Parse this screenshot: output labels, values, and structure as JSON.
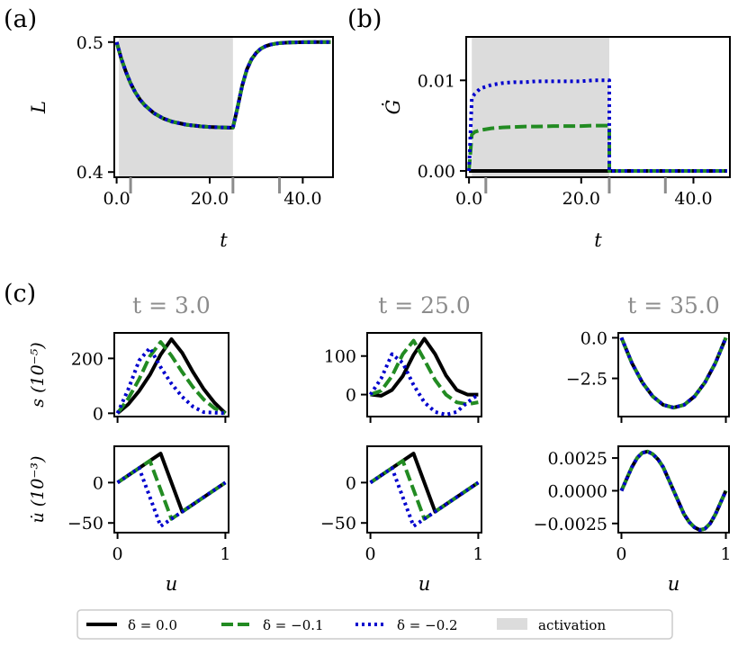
{
  "colors": {
    "black": "#000000",
    "green": "#228b22",
    "blue": "#0000cd",
    "activation": "#dcdcdc",
    "tick_grey": "#8c8c8c",
    "title_grey": "#8c8c8c"
  },
  "chart_data": [
    {
      "id": "a",
      "panel_label": "(a)",
      "type": "line",
      "xlabel": "t",
      "ylabel": "L",
      "xlim": [
        -0.5,
        46.5
      ],
      "ylim": [
        0.396,
        0.504
      ],
      "xticks": [
        0,
        20,
        40
      ],
      "xtick_labels": [
        "0.0",
        "20.0",
        "40.0"
      ],
      "minor_xticks": [
        3,
        25,
        35
      ],
      "yticks": [
        0.4,
        0.5
      ],
      "ytick_labels": [
        "0.4",
        "0.5"
      ],
      "activation": [
        0.5,
        25
      ],
      "series": [
        {
          "name": "δ = 0.0",
          "color": "#000000",
          "dash": "solid",
          "x": [
            0,
            1,
            2,
            3,
            4,
            5,
            6,
            8,
            10,
            12,
            15,
            18,
            20,
            22,
            24,
            25,
            26,
            27,
            28,
            29,
            30,
            31,
            32,
            33,
            34,
            35,
            37,
            40,
            43,
            46
          ],
          "y": [
            0.5,
            0.4873,
            0.4771,
            0.4683,
            0.4614,
            0.4559,
            0.4516,
            0.4453,
            0.4413,
            0.4387,
            0.4364,
            0.4352,
            0.4347,
            0.4344,
            0.4342,
            0.4342,
            0.4499,
            0.4667,
            0.479,
            0.4868,
            0.4917,
            0.4949,
            0.4968,
            0.498,
            0.4987,
            0.4992,
            0.4997,
            0.4999,
            0.5,
            0.5
          ]
        },
        {
          "name": "δ = −0.1",
          "color": "#228b22",
          "dash": "dashed",
          "x": [
            0,
            1,
            2,
            3,
            4,
            5,
            6,
            8,
            10,
            12,
            15,
            18,
            20,
            22,
            24,
            25,
            26,
            27,
            28,
            29,
            30,
            31,
            32,
            33,
            34,
            35,
            37,
            40,
            43,
            46
          ],
          "y": [
            0.5,
            0.4873,
            0.4771,
            0.4683,
            0.4614,
            0.4559,
            0.4516,
            0.4453,
            0.4413,
            0.4387,
            0.4364,
            0.4352,
            0.4347,
            0.4344,
            0.4342,
            0.4342,
            0.4499,
            0.4667,
            0.479,
            0.4868,
            0.4917,
            0.4949,
            0.4968,
            0.498,
            0.4987,
            0.4992,
            0.4997,
            0.4999,
            0.5,
            0.5
          ]
        },
        {
          "name": "δ = −0.2",
          "color": "#0000cd",
          "dash": "dotted",
          "x": [
            0,
            1,
            2,
            3,
            4,
            5,
            6,
            8,
            10,
            12,
            15,
            18,
            20,
            22,
            24,
            25,
            26,
            27,
            28,
            29,
            30,
            31,
            32,
            33,
            34,
            35,
            37,
            40,
            43,
            46
          ],
          "y": [
            0.5,
            0.4873,
            0.4771,
            0.4683,
            0.4614,
            0.4559,
            0.4516,
            0.4453,
            0.4413,
            0.4387,
            0.4364,
            0.4352,
            0.4347,
            0.4344,
            0.4342,
            0.4342,
            0.4499,
            0.4667,
            0.479,
            0.4868,
            0.4917,
            0.4949,
            0.4968,
            0.498,
            0.4987,
            0.4992,
            0.4997,
            0.4999,
            0.5,
            0.5
          ]
        }
      ]
    },
    {
      "id": "b",
      "panel_label": "(b)",
      "type": "line",
      "xlabel": "t",
      "ylabel": "Ġ",
      "xlim": [
        -0.5,
        46.5
      ],
      "ylim": [
        -0.0007,
        0.0148
      ],
      "xticks": [
        0,
        20,
        40
      ],
      "xtick_labels": [
        "0.0",
        "20.0",
        "40.0"
      ],
      "minor_xticks": [
        3,
        25,
        35
      ],
      "yticks": [
        0.0,
        0.01
      ],
      "ytick_labels": [
        "0.00",
        "0.01"
      ],
      "activation": [
        0.5,
        25
      ],
      "series": [
        {
          "name": "δ = 0.0",
          "color": "#000000",
          "dash": "solid",
          "x": [
            0,
            25,
            25.01,
            46
          ],
          "y": [
            0,
            0,
            0,
            0
          ]
        },
        {
          "name": "δ = −0.1",
          "color": "#228b22",
          "dash": "dashed",
          "x": [
            0,
            0.5,
            1,
            2,
            4,
            6,
            8,
            10,
            12,
            15,
            18,
            20,
            22,
            24,
            25,
            25.01,
            46
          ],
          "y": [
            0,
            0.004,
            0.0043,
            0.0045,
            0.0047,
            0.0048,
            0.00485,
            0.0049,
            0.0049,
            0.00495,
            0.00495,
            0.00495,
            0.005,
            0.005,
            0.005,
            0,
            0
          ]
        },
        {
          "name": "δ = −0.2",
          "color": "#0000cd",
          "dash": "dotted",
          "x": [
            0,
            0.5,
            1,
            2,
            4,
            6,
            8,
            10,
            12,
            15,
            18,
            20,
            22,
            24,
            25,
            25.01,
            46
          ],
          "y": [
            0,
            0.008,
            0.0085,
            0.0091,
            0.0095,
            0.0097,
            0.0098,
            0.0098,
            0.0099,
            0.0099,
            0.0099,
            0.0099,
            0.01,
            0.01,
            0.01,
            0,
            0
          ]
        }
      ]
    },
    {
      "id": "c1",
      "panel_label": "(c)",
      "title": "t = 3.0",
      "type": "line",
      "ylabel": "s (10⁻⁵)",
      "xlim": [
        -0.03,
        1.03
      ],
      "ylim": [
        -12,
        293
      ],
      "xticks": [
        0,
        1
      ],
      "xtick_labels": [
        "",
        ""
      ],
      "yticks": [
        0,
        200
      ],
      "ytick_labels": [
        "0",
        "200"
      ],
      "series": [
        {
          "name": "δ = 0.0",
          "color": "#000000",
          "dash": "solid",
          "x": [
            0,
            0.1,
            0.2,
            0.3,
            0.4,
            0.5,
            0.6,
            0.7,
            0.8,
            0.9,
            1.0
          ],
          "y": [
            0,
            33,
            81,
            140,
            214,
            270,
            220,
            150,
            88,
            38,
            0
          ]
        },
        {
          "name": "δ = −0.1",
          "color": "#228b22",
          "dash": "dashed",
          "x": [
            0,
            0.1,
            0.2,
            0.3,
            0.4,
            0.5,
            0.6,
            0.7,
            0.8,
            0.9,
            1.0
          ],
          "y": [
            0,
            54,
            124,
            208,
            260,
            210,
            150,
            95,
            50,
            18,
            0
          ]
        },
        {
          "name": "δ = −0.2",
          "color": "#0000cd",
          "dash": "dotted",
          "x": [
            0,
            0.1,
            0.2,
            0.3,
            0.4,
            0.5,
            0.6,
            0.7,
            0.8,
            0.9,
            1.0
          ],
          "y": [
            0,
            88,
            192,
            238,
            168,
            108,
            60,
            24,
            4,
            2,
            0
          ]
        }
      ]
    },
    {
      "id": "c2",
      "title": "t = 25.0",
      "type": "line",
      "xlim": [
        -0.03,
        1.03
      ],
      "ylim": [
        -57,
        160
      ],
      "xticks": [
        0,
        1
      ],
      "xtick_labels": [
        "",
        ""
      ],
      "yticks": [
        0,
        100
      ],
      "ytick_labels": [
        "0",
        "100"
      ],
      "series": [
        {
          "name": "δ = 0.0",
          "color": "#000000",
          "dash": "solid",
          "x": [
            0,
            0.1,
            0.2,
            0.3,
            0.4,
            0.5,
            0.6,
            0.7,
            0.8,
            0.9,
            1.0
          ],
          "y": [
            0,
            -3,
            12,
            48,
            103,
            145,
            105,
            50,
            12,
            0,
            0
          ]
        },
        {
          "name": "δ = −0.1",
          "color": "#228b22",
          "dash": "dashed",
          "x": [
            0,
            0.1,
            0.2,
            0.3,
            0.4,
            0.5,
            0.6,
            0.7,
            0.8,
            0.9,
            1.0
          ],
          "y": [
            0,
            10,
            48,
            105,
            140,
            90,
            38,
            0,
            -20,
            -25,
            -20
          ]
        },
        {
          "name": "δ = −0.2",
          "color": "#0000cd",
          "dash": "dotted",
          "x": [
            0,
            0.1,
            0.2,
            0.3,
            0.4,
            0.5,
            0.6,
            0.7,
            0.8,
            0.9,
            1.0
          ],
          "y": [
            0,
            42,
            105,
            82,
            25,
            -20,
            -45,
            -52,
            -45,
            -20,
            0
          ]
        }
      ]
    },
    {
      "id": "c3",
      "title": "t = 35.0",
      "type": "line",
      "xlim": [
        -0.03,
        1.03
      ],
      "ylim": [
        -4.85,
        0.3
      ],
      "xticks": [
        0,
        1
      ],
      "xtick_labels": [
        "",
        ""
      ],
      "yticks": [
        0.0,
        -2.5
      ],
      "ytick_labels": [
        "0.0",
        "−2.5"
      ],
      "series": [
        {
          "name": "δ = 0.0",
          "color": "#000000",
          "dash": "solid",
          "x": [
            0,
            0.1,
            0.2,
            0.3,
            0.4,
            0.5,
            0.6,
            0.7,
            0.8,
            0.9,
            1.0
          ],
          "y": [
            0,
            -1.55,
            -2.75,
            -3.61,
            -4.13,
            -4.3,
            -4.13,
            -3.61,
            -2.75,
            -1.55,
            0
          ]
        },
        {
          "name": "δ = −0.1",
          "color": "#228b22",
          "dash": "dashed",
          "x": [
            0,
            0.1,
            0.2,
            0.3,
            0.4,
            0.5,
            0.6,
            0.7,
            0.8,
            0.9,
            1.0
          ],
          "y": [
            0,
            -1.55,
            -2.75,
            -3.61,
            -4.13,
            -4.3,
            -4.13,
            -3.61,
            -2.75,
            -1.55,
            0
          ]
        },
        {
          "name": "δ = −0.2",
          "color": "#0000cd",
          "dash": "dotted",
          "x": [
            0,
            0.1,
            0.2,
            0.3,
            0.4,
            0.5,
            0.6,
            0.7,
            0.8,
            0.9,
            1.0
          ],
          "y": [
            0,
            -1.55,
            -2.75,
            -3.61,
            -4.13,
            -4.3,
            -4.13,
            -3.61,
            -2.75,
            -1.55,
            0
          ]
        }
      ]
    },
    {
      "id": "c4",
      "type": "line",
      "xlabel": "u",
      "ylabel": "u̇ (10⁻³)",
      "xlim": [
        -0.03,
        1.03
      ],
      "ylim": [
        -62,
        45
      ],
      "xticks": [
        0,
        1
      ],
      "xtick_labels": [
        "0",
        "1"
      ],
      "yticks": [
        0,
        -50
      ],
      "ytick_labels": [
        "0",
        "−50"
      ],
      "series": [
        {
          "name": "δ = 0.0",
          "color": "#000000",
          "dash": "solid",
          "x": [
            0,
            0.4,
            0.6,
            1.0
          ],
          "y": [
            0,
            36,
            -36,
            0
          ]
        },
        {
          "name": "δ = −0.1",
          "color": "#228b22",
          "dash": "dashed",
          "x": [
            0,
            0.3,
            0.5,
            1.0
          ],
          "y": [
            0,
            27,
            -45,
            0
          ]
        },
        {
          "name": "δ = −0.2",
          "color": "#0000cd",
          "dash": "dotted",
          "x": [
            0,
            0.2,
            0.4,
            1.0
          ],
          "y": [
            0,
            18,
            -54,
            0
          ]
        }
      ]
    },
    {
      "id": "c5",
      "type": "line",
      "xlabel": "u",
      "xlim": [
        -0.03,
        1.03
      ],
      "ylim": [
        -62,
        45
      ],
      "xticks": [
        0,
        1
      ],
      "xtick_labels": [
        "0",
        "1"
      ],
      "yticks": [
        0,
        -50
      ],
      "ytick_labels": [
        "0",
        "−50"
      ],
      "series": [
        {
          "name": "δ = 0.0",
          "color": "#000000",
          "dash": "solid",
          "x": [
            0,
            0.4,
            0.6,
            1.0
          ],
          "y": [
            0,
            36,
            -36,
            0
          ]
        },
        {
          "name": "δ = −0.1",
          "color": "#228b22",
          "dash": "dashed",
          "x": [
            0,
            0.3,
            0.5,
            1.0
          ],
          "y": [
            0,
            27,
            -45,
            0
          ]
        },
        {
          "name": "δ = −0.2",
          "color": "#0000cd",
          "dash": "dotted",
          "x": [
            0,
            0.2,
            0.4,
            1.0
          ],
          "y": [
            0,
            18,
            -54,
            0
          ]
        }
      ]
    },
    {
      "id": "c6",
      "type": "line",
      "xlabel": "u",
      "xlim": [
        -0.03,
        1.03
      ],
      "ylim": [
        -0.0032,
        0.0034
      ],
      "xticks": [
        0,
        1
      ],
      "xtick_labels": [
        "0",
        "1"
      ],
      "yticks": [
        0.0025,
        0.0,
        -0.0025
      ],
      "ytick_labels": [
        "0.0025",
        "0.0000",
        "−0.0025"
      ],
      "series": [
        {
          "name": "δ = 0.0",
          "color": "#000000",
          "dash": "solid",
          "x": [
            0,
            0.05,
            0.1,
            0.15,
            0.2,
            0.25,
            0.3,
            0.35,
            0.4,
            0.45,
            0.5,
            0.55,
            0.6,
            0.65,
            0.7,
            0.75,
            0.8,
            0.85,
            0.9,
            0.95,
            1.0
          ],
          "y": [
            0,
            0.0009,
            0.0018,
            0.0025,
            0.0029,
            0.003,
            0.0028,
            0.0024,
            0.0018,
            0.0009,
            0,
            -0.0009,
            -0.0018,
            -0.0024,
            -0.0028,
            -0.003,
            -0.0029,
            -0.0025,
            -0.0018,
            -0.0009,
            0
          ]
        },
        {
          "name": "δ = −0.1",
          "color": "#228b22",
          "dash": "dashed",
          "x": [
            0,
            0.05,
            0.1,
            0.15,
            0.2,
            0.25,
            0.3,
            0.35,
            0.4,
            0.45,
            0.5,
            0.55,
            0.6,
            0.65,
            0.7,
            0.75,
            0.8,
            0.85,
            0.9,
            0.95,
            1.0
          ],
          "y": [
            0,
            0.0009,
            0.0018,
            0.0025,
            0.0029,
            0.003,
            0.0028,
            0.0024,
            0.0018,
            0.0009,
            0,
            -0.0009,
            -0.0018,
            -0.0024,
            -0.0028,
            -0.003,
            -0.0029,
            -0.0025,
            -0.0018,
            -0.0009,
            0
          ]
        },
        {
          "name": "δ = −0.2",
          "color": "#0000cd",
          "dash": "dotted",
          "x": [
            0,
            0.05,
            0.1,
            0.15,
            0.2,
            0.25,
            0.3,
            0.35,
            0.4,
            0.45,
            0.5,
            0.55,
            0.6,
            0.65,
            0.7,
            0.75,
            0.8,
            0.85,
            0.9,
            0.95,
            1.0
          ],
          "y": [
            0,
            0.0009,
            0.0018,
            0.0025,
            0.0029,
            0.003,
            0.0028,
            0.0024,
            0.0018,
            0.0009,
            0,
            -0.0009,
            -0.0018,
            -0.0024,
            -0.0028,
            -0.003,
            -0.0029,
            -0.0025,
            -0.0018,
            -0.0009,
            0
          ]
        }
      ]
    }
  ],
  "legend": {
    "placement": "bottom",
    "entries": [
      {
        "label": "δ = 0.0",
        "color": "#000000",
        "dash": "solid"
      },
      {
        "label": "δ = −0.1",
        "color": "#228b22",
        "dash": "dashed"
      },
      {
        "label": "δ = −0.2",
        "color": "#0000cd",
        "dash": "dotted"
      },
      {
        "label": "activation",
        "color": "#dcdcdc",
        "dash": "patch"
      }
    ]
  }
}
